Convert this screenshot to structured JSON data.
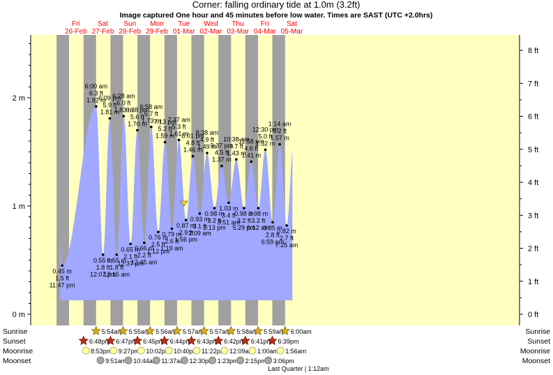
{
  "chart_data": {
    "type": "area",
    "title": "Corner: falling  ordinary tide at 1.0m (3.2ft)",
    "subtitle": "Image captured One hour and 45 minutes before low water. Times are SAST (UTC +2.0hrs)",
    "days": [
      {
        "name": "Fri",
        "date": "26-Feb",
        "day": 0
      },
      {
        "name": "Sat",
        "date": "27-Feb",
        "day": 1
      },
      {
        "name": "Sun",
        "date": "28-Feb",
        "day": 2
      },
      {
        "name": "Mon",
        "date": "29-Feb",
        "day": 3
      },
      {
        "name": "Tue",
        "date": "01-Mar",
        "day": 4
      },
      {
        "name": "Wed",
        "date": "02-Mar",
        "day": 5
      },
      {
        "name": "Thu",
        "date": "03-Mar",
        "day": 6
      },
      {
        "name": "Fri",
        "date": "04-Mar",
        "day": 7
      },
      {
        "name": "Sat",
        "date": "05-Mar",
        "day": 8
      }
    ],
    "y_left": {
      "unit": "m",
      "ticks": [
        {
          "v": 0,
          "label": "0 m"
        },
        {
          "v": 1,
          "label": "1 m"
        },
        {
          "v": 2,
          "label": "2 m"
        }
      ]
    },
    "y_right": {
      "unit": "ft",
      "ticks": [
        "0 ft",
        "1 ft",
        "2 ft",
        "3 ft",
        "4 ft",
        "5 ft",
        "6 ft",
        "7 ft",
        "8 ft"
      ]
    },
    "tides": [
      {
        "type": "low",
        "time": "11:47 pm",
        "m": "0.45 m",
        "ft": "1.5 ft",
        "hours": -0.22,
        "value": 0.45
      },
      {
        "type": "high",
        "time": "6:00 am",
        "m": "1.92 m",
        "ft": "6.3 ft",
        "hours": 30.0,
        "value": 1.92
      },
      {
        "type": "low",
        "time": "12:07 pm",
        "m": "0.55 m",
        "ft": "1.8 ft",
        "hours": 36.12,
        "value": 0.55
      },
      {
        "type": "high",
        "time": "6:09 pm",
        "m": "1.81 m",
        "ft": "5.9 ft",
        "hours": 42.15,
        "value": 1.81
      },
      {
        "type": "low",
        "time": "12:15 am",
        "m": "0.55 m",
        "ft": "1.8 ft",
        "hours": 48.25,
        "value": 0.55
      },
      {
        "type": "high",
        "time": "6:28 am",
        "m": "1.83 m",
        "ft": "6.0 ft",
        "hours": 54.47,
        "value": 1.83
      },
      {
        "type": "low",
        "time": "12:37 pm",
        "m": "0.65 m",
        "ft": "2.1 ft",
        "hours": 60.62,
        "value": 0.65
      },
      {
        "type": "high",
        "time": "6:38 pm",
        "m": "1.70 m",
        "ft": "5.6 ft",
        "hours": 66.63,
        "value": 1.7
      },
      {
        "type": "low",
        "time": "12:45 am",
        "m": "0.66 m",
        "ft": "2.2 ft",
        "hours": 72.75,
        "value": 0.66
      },
      {
        "type": "high",
        "time": "6:58 am",
        "m": "1.73 m",
        "ft": "5.7 ft",
        "hours": 78.97,
        "value": 1.73
      },
      {
        "type": "low",
        "time": "1:12 pm",
        "m": "0.76 m",
        "ft": "2.5 ft",
        "hours": 85.2,
        "value": 0.76
      },
      {
        "type": "high",
        "time": "7:13 pm",
        "m": "1.59 m",
        "ft": "5.2 ft",
        "hours": 91.22,
        "value": 1.59
      },
      {
        "type": "low",
        "time": "1:19 am",
        "m": "0.79 m",
        "ft": "2.6 ft",
        "hours": 97.32,
        "value": 0.79
      },
      {
        "type": "high",
        "time": "7:37 am",
        "m": "1.61 m",
        "ft": "5.3 ft",
        "hours": 103.62,
        "value": 1.61
      },
      {
        "type": "low",
        "time": "1:56 pm",
        "m": "0.87 m",
        "ft": "2.9 ft",
        "hours": 109.93,
        "value": 0.87
      },
      {
        "type": "high",
        "time": "8:01 pm",
        "m": "1.46 m",
        "ft": "4.8 ft",
        "hours": 116.02,
        "value": 1.46
      },
      {
        "type": "low",
        "time": "2:09 am",
        "m": "0.93 m",
        "ft": "3.1 ft",
        "hours": 122.15,
        "value": 0.93
      },
      {
        "type": "high",
        "time": "8:38 am",
        "m": "1.49 m",
        "ft": "4.9 ft",
        "hours": 128.63,
        "value": 1.49
      },
      {
        "type": "low",
        "time": "3:13 pm",
        "m": "0.98 m",
        "ft": "3.2 ft",
        "hours": 135.22,
        "value": 0.98
      },
      {
        "type": "high",
        "time": "9:37 pm",
        "m": "1.37 m",
        "ft": "4.5 ft",
        "hours": 141.62,
        "value": 1.37
      },
      {
        "type": "low",
        "time": "3:51 am",
        "m": "1.03 m",
        "ft": "3.4 ft",
        "hours": 147.85,
        "value": 1.03
      },
      {
        "type": "high",
        "time": "10:38 am",
        "m": "1.43 m",
        "ft": "4.7 ft",
        "hours": 154.63,
        "value": 1.43
      },
      {
        "type": "low",
        "time": "5:29 pm",
        "m": "0.98 m",
        "ft": "3.2 ft",
        "hours": 161.48,
        "value": 0.98
      },
      {
        "type": "high",
        "time": "11:58 pm",
        "m": "1.41 m",
        "ft": "4.6 ft",
        "hours": 167.97,
        "value": 1.41
      },
      {
        "type": "low",
        "time": "6:12 am",
        "m": "0.98 m",
        "ft": "3.2 ft",
        "hours": 174.2,
        "value": 0.98
      },
      {
        "type": "high",
        "time": "12:30 pm",
        "m": "1.52 m",
        "ft": "5.0 ft",
        "hours": 180.5,
        "value": 1.52
      },
      {
        "type": "low",
        "time": "6:59 pm",
        "m": "0.85 m",
        "ft": "2.8 ft",
        "hours": 186.98,
        "value": 0.85
      },
      {
        "type": "high",
        "time": "1:14 am",
        "m": "1.57 m",
        "ft": "5.2 ft",
        "hours": 193.23,
        "value": 1.57
      },
      {
        "type": "low",
        "time": "7:25 am",
        "m": "0.82 m",
        "ft": "2.7 ft",
        "hours": 199.42,
        "value": 0.82
      }
    ],
    "current_level_m": 1.0,
    "current_hours": 108.2,
    "sun": [
      {
        "sunrise": "5:54am",
        "sunset": "6:48pm"
      },
      {
        "sunrise": "5:55am",
        "sunset": "6:47pm"
      },
      {
        "sunrise": "5:56am",
        "sunset": "6:45pm"
      },
      {
        "sunrise": "5:57am",
        "sunset": "6:44pm"
      },
      {
        "sunrise": "5:57am",
        "sunset": "6:43pm"
      },
      {
        "sunrise": "5:58am",
        "sunset": "6:42pm"
      },
      {
        "sunrise": "5:59am",
        "sunset": "6:41pm"
      },
      {
        "sunrise": "6:00am",
        "sunset": "6:39pm"
      }
    ],
    "moonrise": [
      "8:53pm",
      "9:27pm",
      "10:02pm",
      "10:40pm",
      "11:22pm",
      "12:09am",
      "1:00am",
      "1:56am"
    ],
    "moonset": [
      "9:51am",
      "10:44am",
      "11:37am",
      "12:30pm",
      "1:23pm",
      "2:15pm",
      "3:06pm"
    ],
    "row_labels": {
      "sunrise": "Sunrise",
      "sunset": "Sunset",
      "moonrise": "Moonrise",
      "moonset": "Moonset"
    },
    "moon_phase": "Last Quarter | 1:12am",
    "colors": {
      "day": "#ffffc0",
      "night": "#a0a0a0",
      "water": "#a0a8ff",
      "day_label": "#ff0000",
      "sunrise": "#d4b020",
      "sunset": "#c03010",
      "moonrise": "#ffffa0",
      "moonset": "#a8a8a0"
    }
  }
}
